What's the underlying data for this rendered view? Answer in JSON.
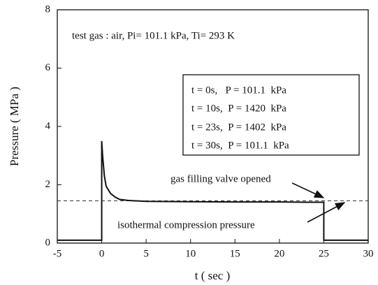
{
  "chart_data": {
    "type": "line",
    "xlabel": "t ( sec )",
    "ylabel": "Pressure ( MPa )",
    "x": [
      -5,
      0,
      0,
      0.1,
      0.3,
      0.5,
      1,
      1.5,
      2,
      3,
      5,
      10,
      15,
      20,
      23,
      25,
      25,
      30
    ],
    "series": [
      {
        "color": "#111111",
        "values": [
          0.1,
          0.1,
          3.5,
          3.0,
          2.3,
          1.95,
          1.7,
          1.58,
          1.5,
          1.46,
          1.43,
          1.42,
          1.41,
          1.41,
          1.4,
          1.4,
          0.1,
          0.1
        ]
      }
    ],
    "reference_line": 1.45,
    "xlim": [
      -5,
      30
    ],
    "ylim": [
      0,
      8
    ],
    "xticks": [
      -5,
      0,
      5,
      10,
      15,
      20,
      25,
      30
    ],
    "yticks": [
      0,
      2,
      4,
      6,
      8
    ],
    "annotations": [
      "test gas : air, Pi= 101.1 kPa, Ti= 293 K",
      "gas filling valve opened",
      "isothermal compression pressure"
    ],
    "legend_box": [
      "t = 0s,   P = 101.1  kPa",
      "t = 10s,  P = 1420  kPa",
      "t = 23s,  P = 1402  kPa",
      "t = 30s,  P = 101.1  kPa"
    ]
  }
}
